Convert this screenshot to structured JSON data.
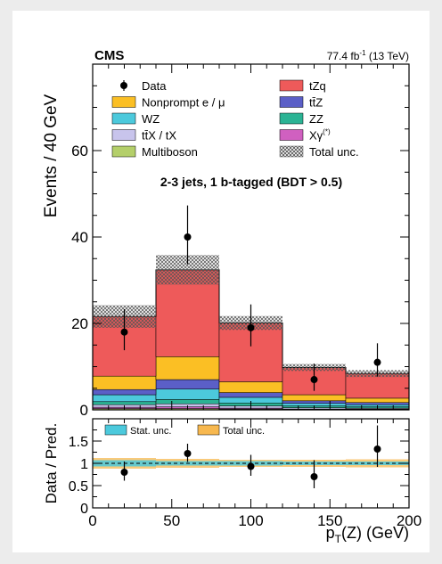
{
  "experiment": "CMS",
  "luminosity_base": "77.4 fb",
  "luminosity_exp": "-1",
  "luminosity_tail": " (13 TeV)",
  "region_label": "2-3 jets, 1 b-tagged (BDT > 0.5)",
  "colors": {
    "tZq": "#ee5a5a",
    "Nonprompt": "#fbbf24",
    "ttZ": "#5b5fc7",
    "WZ": "#4cc9dc",
    "ZZ": "#2bb394",
    "ttX": "#c8c4ec",
    "Xgamma": "#d060c0",
    "Multiboson": "#b4cf6a",
    "stat_band": "#4cc9dc",
    "total_band": "#f7b84f"
  },
  "chart_data": [
    {
      "type": "bar",
      "ylabel": "Events / 40 GeV",
      "ylim": [
        0,
        80
      ],
      "yticks": [
        0,
        20,
        40,
        60
      ],
      "xlim": [
        0,
        200
      ],
      "bin_edges": [
        0,
        40,
        80,
        120,
        160,
        200
      ],
      "legend": [
        {
          "label": "Data",
          "kind": "marker",
          "key": "Data"
        },
        {
          "label": "tZq",
          "kind": "box",
          "key": "tZq"
        },
        {
          "label": "Nonprompt e / μ",
          "kind": "box",
          "key": "Nonprompt"
        },
        {
          "label": "tt̄Z",
          "kind": "box",
          "key": "ttZ"
        },
        {
          "label": "WZ",
          "kind": "box",
          "key": "WZ"
        },
        {
          "label": "ZZ",
          "kind": "box",
          "key": "ZZ"
        },
        {
          "label": "tt̄X / tX",
          "kind": "box",
          "key": "ttX"
        },
        {
          "label": "Xγ",
          "sup": "(*)",
          "kind": "box",
          "key": "Xgamma"
        },
        {
          "label": "Multiboson",
          "kind": "box",
          "key": "Multiboson"
        },
        {
          "label": "Total unc.",
          "kind": "hatch",
          "key": "Total"
        }
      ],
      "series": [
        {
          "key": "Multiboson",
          "values": [
            0.3,
            0.3,
            0.2,
            0.1,
            0.1
          ]
        },
        {
          "key": "Xgamma",
          "values": [
            0.3,
            0.4,
            0.2,
            0.1,
            0.1
          ]
        },
        {
          "key": "ttX",
          "values": [
            0.6,
            0.7,
            0.5,
            0.3,
            0.2
          ]
        },
        {
          "key": "ZZ",
          "values": [
            0.7,
            1.0,
            0.7,
            0.4,
            0.3
          ]
        },
        {
          "key": "WZ",
          "values": [
            1.6,
            2.4,
            1.3,
            0.6,
            0.5
          ]
        },
        {
          "key": "ttZ",
          "values": [
            1.2,
            2.2,
            1.1,
            0.6,
            0.5
          ]
        },
        {
          "key": "Nonprompt",
          "values": [
            3.1,
            5.3,
            2.5,
            1.4,
            1.0
          ]
        },
        {
          "key": "tZq",
          "values": [
            13.8,
            20.1,
            13.6,
            6.3,
            5.7
          ]
        }
      ],
      "total_unc": [
        2.6,
        3.4,
        1.6,
        0.8,
        0.8
      ],
      "data": [
        {
          "x": 20,
          "y": 18,
          "err_lo": 4.2,
          "err_hi": 5.3
        },
        {
          "x": 60,
          "y": 40,
          "err_lo": 6.3,
          "err_hi": 7.3
        },
        {
          "x": 100,
          "y": 19,
          "err_lo": 4.3,
          "err_hi": 5.4
        },
        {
          "x": 140,
          "y": 7,
          "err_lo": 2.6,
          "err_hi": 3.7
        },
        {
          "x": 180,
          "y": 11,
          "err_lo": 3.3,
          "err_hi": 4.4
        }
      ]
    },
    {
      "type": "scatter",
      "ylabel": "Data / Pred.",
      "xlabel_base": "p",
      "xlabel_sub": "T",
      "xlabel_tail": "(Z) (GeV)",
      "ylim": [
        0,
        2
      ],
      "yticks": [
        0,
        0.5,
        1,
        1.5
      ],
      "xticks": [
        0,
        50,
        100,
        150,
        200
      ],
      "legend": [
        {
          "label": "Stat. unc.",
          "key": "stat_band"
        },
        {
          "label": "Total unc.",
          "key": "total_band"
        }
      ],
      "stat_unc": [
        0.07,
        0.05,
        0.05,
        0.04,
        0.04
      ],
      "total_unc": [
        0.12,
        0.1,
        0.08,
        0.08,
        0.09
      ],
      "data": [
        {
          "x": 20,
          "y": 0.8,
          "err_lo": 0.19,
          "err_hi": 0.24
        },
        {
          "x": 60,
          "y": 1.22,
          "err_lo": 0.19,
          "err_hi": 0.22
        },
        {
          "x": 100,
          "y": 0.93,
          "err_lo": 0.21,
          "err_hi": 0.26
        },
        {
          "x": 140,
          "y": 0.7,
          "err_lo": 0.26,
          "err_hi": 0.37
        },
        {
          "x": 180,
          "y": 1.32,
          "err_lo": 0.4,
          "err_hi": 0.53
        }
      ]
    }
  ]
}
